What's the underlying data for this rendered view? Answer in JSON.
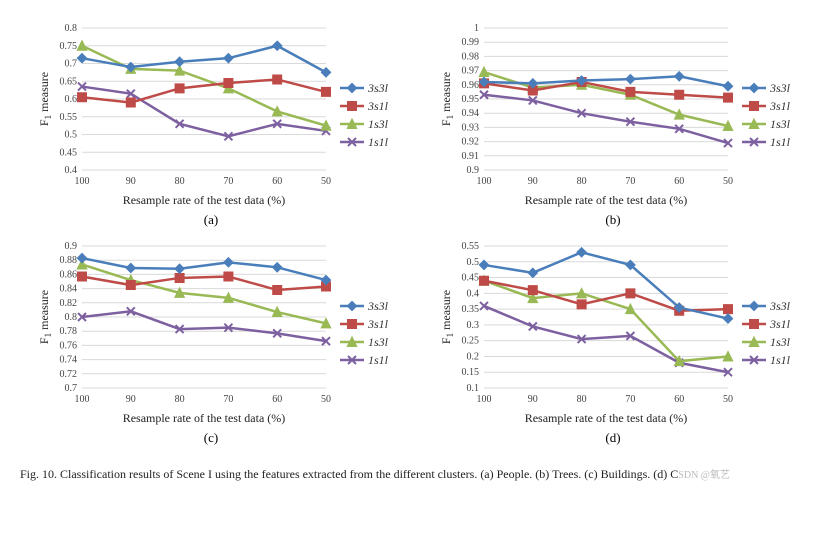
{
  "global": {
    "font_family": "Times New Roman, serif",
    "background_color": "#ffffff",
    "grid_color": "#d9d9d9",
    "axis_color": "#888888",
    "tick_fontsize": 10,
    "label_fontsize": 12,
    "legend_fontsize": 12,
    "line_width": 2.5,
    "marker_size": 5
  },
  "series_style": {
    "3s3l": {
      "color": "#4a7ebb",
      "marker": "diamond"
    },
    "3s1l": {
      "color": "#be4b48",
      "marker": "square"
    },
    "1s3l": {
      "color": "#98b954",
      "marker": "triangle"
    },
    "1s1l": {
      "color": "#7d60a0",
      "marker": "cross"
    }
  },
  "x_categories": [
    100,
    90,
    80,
    70,
    60,
    50
  ],
  "x_label": "Resample rate of the test data (%)",
  "y_label": "F",
  "y_sub": "1",
  "y_label_tail": " measure",
  "legend_labels": [
    "3s3l",
    "3s1l",
    "1s3l",
    "1s1l"
  ],
  "panels": [
    {
      "id": "a",
      "sublabel": "(a)",
      "ylim": [
        0.4,
        0.8
      ],
      "ytick_step": 0.05,
      "series": {
        "3s3l": [
          0.715,
          0.69,
          0.705,
          0.715,
          0.75,
          0.675
        ],
        "3s1l": [
          0.605,
          0.59,
          0.63,
          0.645,
          0.655,
          0.62
        ],
        "1s3l": [
          0.75,
          0.685,
          0.68,
          0.63,
          0.565,
          0.525
        ],
        "1s1l": [
          0.635,
          0.615,
          0.53,
          0.495,
          0.53,
          0.51
        ]
      }
    },
    {
      "id": "b",
      "sublabel": "(b)",
      "ylim": [
        0.9,
        1.0
      ],
      "ytick_step": 0.01,
      "series": {
        "3s3l": [
          0.962,
          0.961,
          0.963,
          0.964,
          0.966,
          0.959
        ],
        "3s1l": [
          0.961,
          0.956,
          0.962,
          0.955,
          0.953,
          0.951
        ],
        "1s3l": [
          0.969,
          0.958,
          0.96,
          0.953,
          0.939,
          0.931
        ],
        "1s1l": [
          0.953,
          0.949,
          0.94,
          0.934,
          0.929,
          0.919
        ]
      }
    },
    {
      "id": "c",
      "sublabel": "(c)",
      "ylim": [
        0.7,
        0.9
      ],
      "ytick_step": 0.02,
      "series": {
        "3s3l": [
          0.883,
          0.869,
          0.868,
          0.877,
          0.87,
          0.852
        ],
        "3s1l": [
          0.857,
          0.845,
          0.855,
          0.857,
          0.838,
          0.843
        ],
        "1s3l": [
          0.874,
          0.852,
          0.834,
          0.827,
          0.807,
          0.791
        ],
        "1s1l": [
          0.8,
          0.808,
          0.783,
          0.785,
          0.777,
          0.766
        ]
      }
    },
    {
      "id": "d",
      "sublabel": "(d)",
      "ylim": [
        0.1,
        0.55
      ],
      "ytick_step": 0.05,
      "series": {
        "3s3l": [
          0.49,
          0.465,
          0.53,
          0.49,
          0.355,
          0.32
        ],
        "3s1l": [
          0.44,
          0.41,
          0.365,
          0.4,
          0.345,
          0.35
        ],
        "1s3l": [
          0.44,
          0.385,
          0.4,
          0.35,
          0.185,
          0.2
        ],
        "1s1l": [
          0.36,
          0.295,
          0.255,
          0.265,
          0.18,
          0.15
        ]
      }
    }
  ],
  "caption": "Fig. 10.   Classification results of Scene I using the features extracted from the different clusters. (a) People. (b) Trees. (c) Buildings. (d) C",
  "watermark": "SDN @氧艺"
}
